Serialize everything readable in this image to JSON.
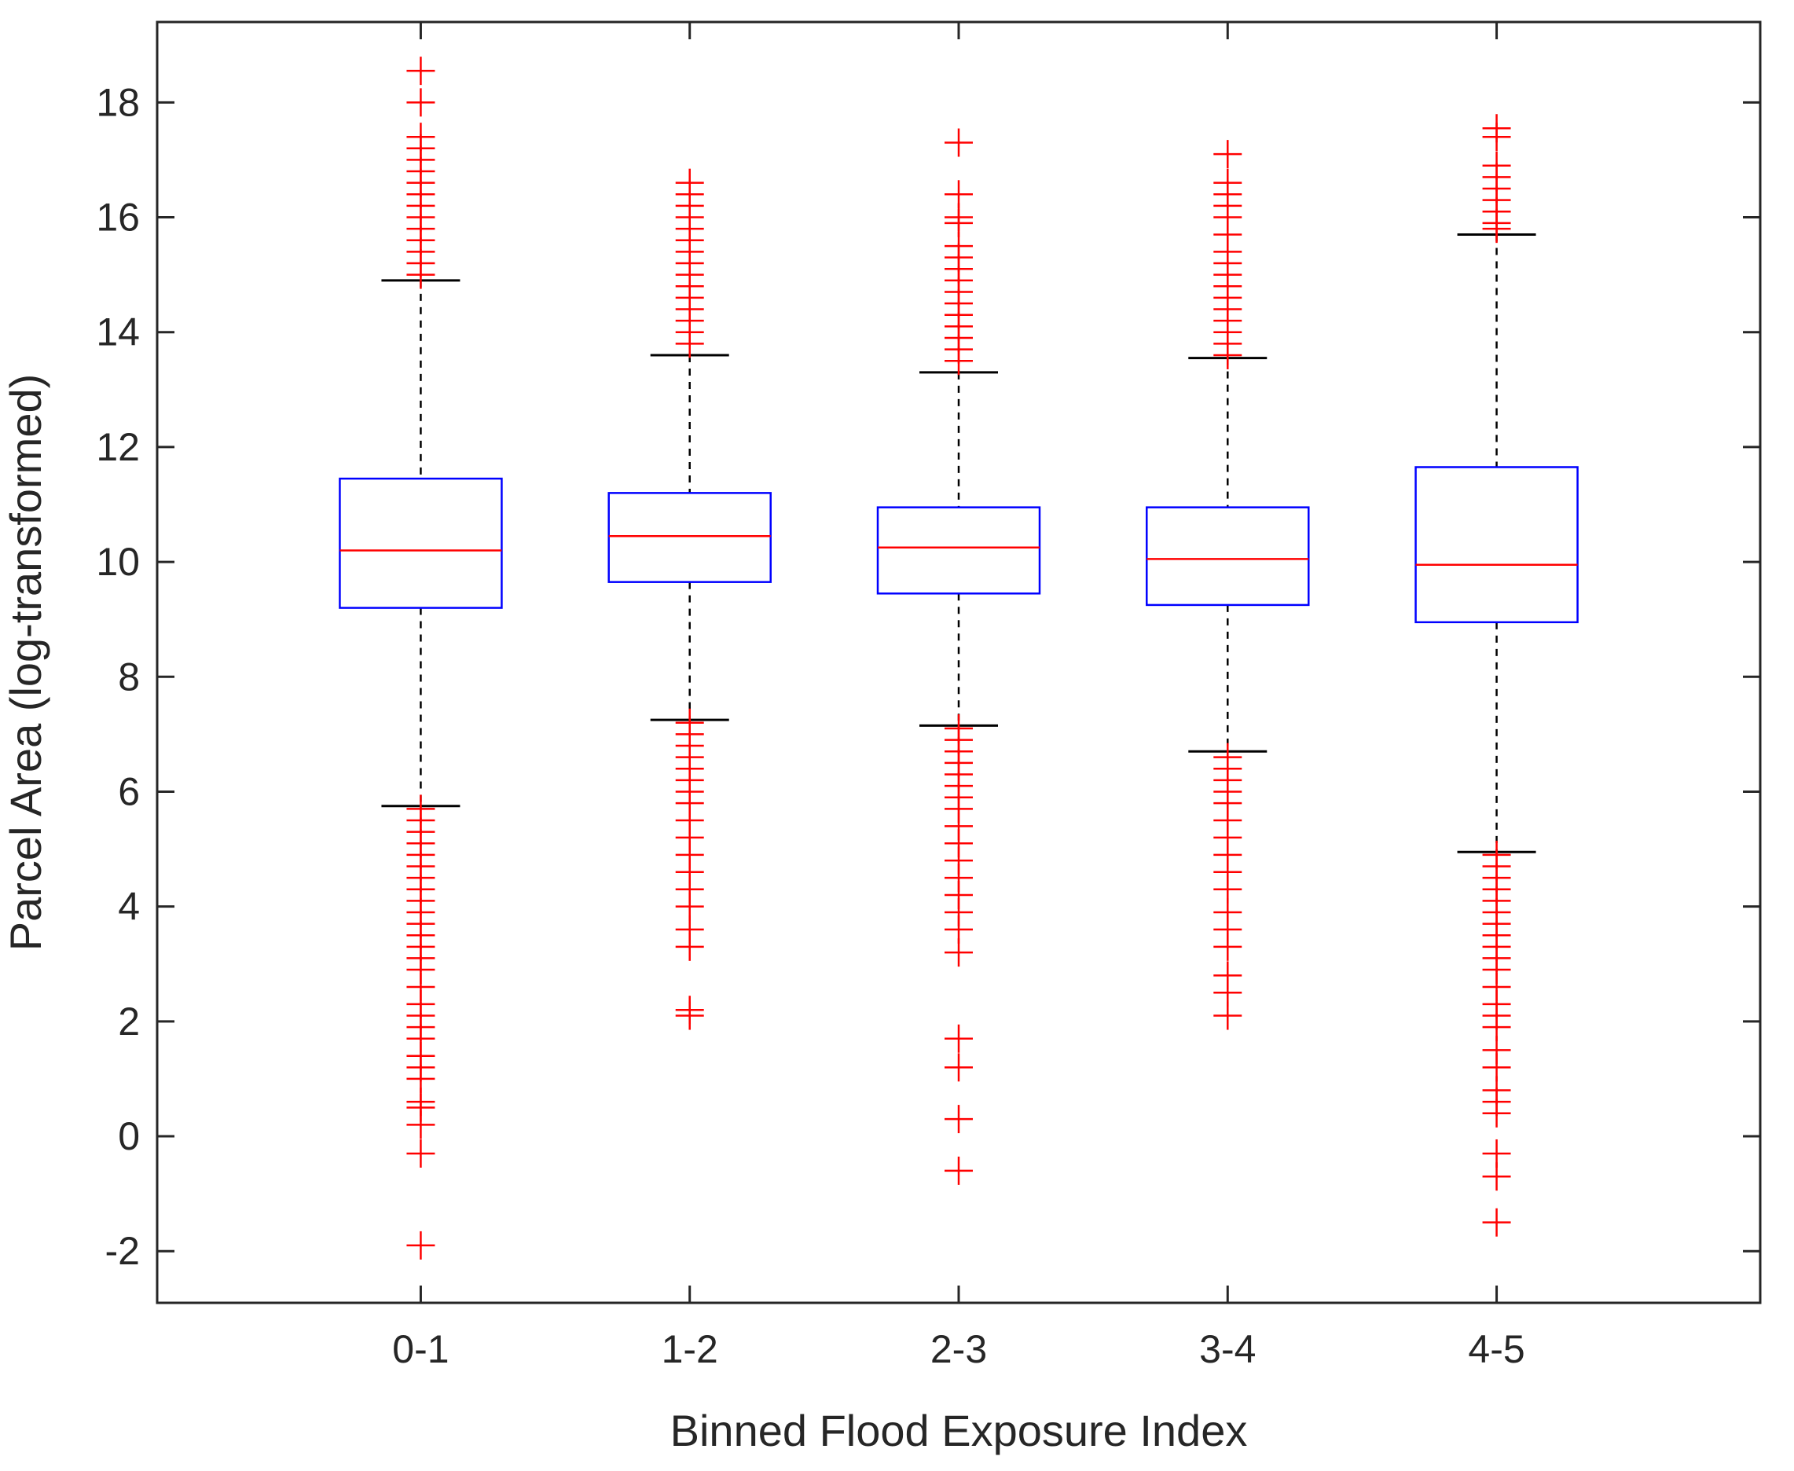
{
  "chart_data": {
    "type": "box",
    "title": "",
    "xlabel": "Binned Flood Exposure Index",
    "ylabel": "Parcel Area (log-transformed)",
    "ylim": [
      -2.9,
      19.4
    ],
    "yticks": [
      -2,
      0,
      2,
      4,
      6,
      8,
      10,
      12,
      14,
      16,
      18
    ],
    "ytick_labels": [
      "-2",
      "0",
      "2",
      "4",
      "6",
      "8",
      "10",
      "12",
      "14",
      "16",
      "18"
    ],
    "categories": [
      "0-1",
      "1-2",
      "2-3",
      "3-4",
      "4-5"
    ],
    "grid": false,
    "colors": {
      "box": "#0000ff",
      "median": "#ff0000",
      "outlier": "#ff0000",
      "whisker": "#000000",
      "axis": "#262626"
    },
    "boxes": [
      {
        "category": "0-1",
        "lower_whisker": 5.75,
        "q1": 9.2,
        "median": 10.2,
        "q3": 11.45,
        "upper_whisker": 14.9,
        "outliers": [
          18.55,
          18.0,
          17.4,
          17.2,
          17.0,
          16.8,
          16.6,
          16.4,
          16.2,
          16.0,
          15.8,
          15.6,
          15.4,
          15.2,
          15.0,
          5.7,
          5.5,
          5.3,
          5.1,
          4.9,
          4.7,
          4.5,
          4.3,
          4.1,
          3.9,
          3.7,
          3.5,
          3.3,
          3.1,
          2.9,
          2.6,
          2.3,
          2.1,
          1.9,
          1.7,
          1.4,
          1.2,
          1.0,
          0.6,
          0.5,
          0.2,
          -0.3,
          -1.9
        ]
      },
      {
        "category": "1-2",
        "lower_whisker": 7.25,
        "q1": 9.65,
        "median": 10.45,
        "q3": 11.2,
        "upper_whisker": 13.6,
        "outliers": [
          16.6,
          16.4,
          16.2,
          16.0,
          15.8,
          15.6,
          15.4,
          15.2,
          15.0,
          14.8,
          14.6,
          14.4,
          14.2,
          14.0,
          13.8,
          7.2,
          7.0,
          6.8,
          6.6,
          6.4,
          6.2,
          6.0,
          5.8,
          5.5,
          5.2,
          4.9,
          4.6,
          4.3,
          4.0,
          3.6,
          3.3,
          2.2,
          2.1
        ]
      },
      {
        "category": "2-3",
        "lower_whisker": 7.15,
        "q1": 9.45,
        "median": 10.25,
        "q3": 10.95,
        "upper_whisker": 13.3,
        "outliers": [
          17.3,
          16.4,
          16.0,
          15.9,
          15.5,
          15.3,
          15.1,
          14.9,
          14.7,
          14.5,
          14.3,
          14.1,
          13.9,
          13.7,
          13.5,
          7.1,
          6.9,
          6.7,
          6.5,
          6.3,
          6.1,
          5.9,
          5.7,
          5.4,
          5.1,
          4.8,
          4.5,
          4.2,
          3.9,
          3.6,
          3.2,
          1.7,
          1.2,
          0.3,
          -0.6
        ]
      },
      {
        "category": "3-4",
        "lower_whisker": 6.7,
        "q1": 9.25,
        "median": 10.05,
        "q3": 10.95,
        "upper_whisker": 13.55,
        "outliers": [
          17.1,
          16.6,
          16.4,
          16.2,
          16.0,
          15.7,
          15.4,
          15.2,
          15.0,
          14.8,
          14.6,
          14.4,
          14.2,
          14.0,
          13.8,
          13.6,
          6.6,
          6.4,
          6.2,
          6.0,
          5.8,
          5.5,
          5.2,
          4.9,
          4.6,
          4.3,
          3.9,
          3.6,
          3.3,
          2.8,
          2.5,
          2.1
        ]
      },
      {
        "category": "4-5",
        "lower_whisker": 4.95,
        "q1": 8.95,
        "median": 9.95,
        "q3": 11.65,
        "upper_whisker": 15.7,
        "outliers": [
          17.55,
          17.4,
          16.9,
          16.7,
          16.5,
          16.3,
          16.1,
          15.9,
          15.8,
          4.9,
          4.7,
          4.5,
          4.3,
          4.1,
          3.9,
          3.7,
          3.5,
          3.3,
          3.1,
          2.9,
          2.6,
          2.3,
          2.1,
          1.9,
          1.5,
          1.2,
          0.8,
          0.6,
          0.4,
          -0.3,
          -0.7,
          -1.5
        ]
      }
    ]
  }
}
